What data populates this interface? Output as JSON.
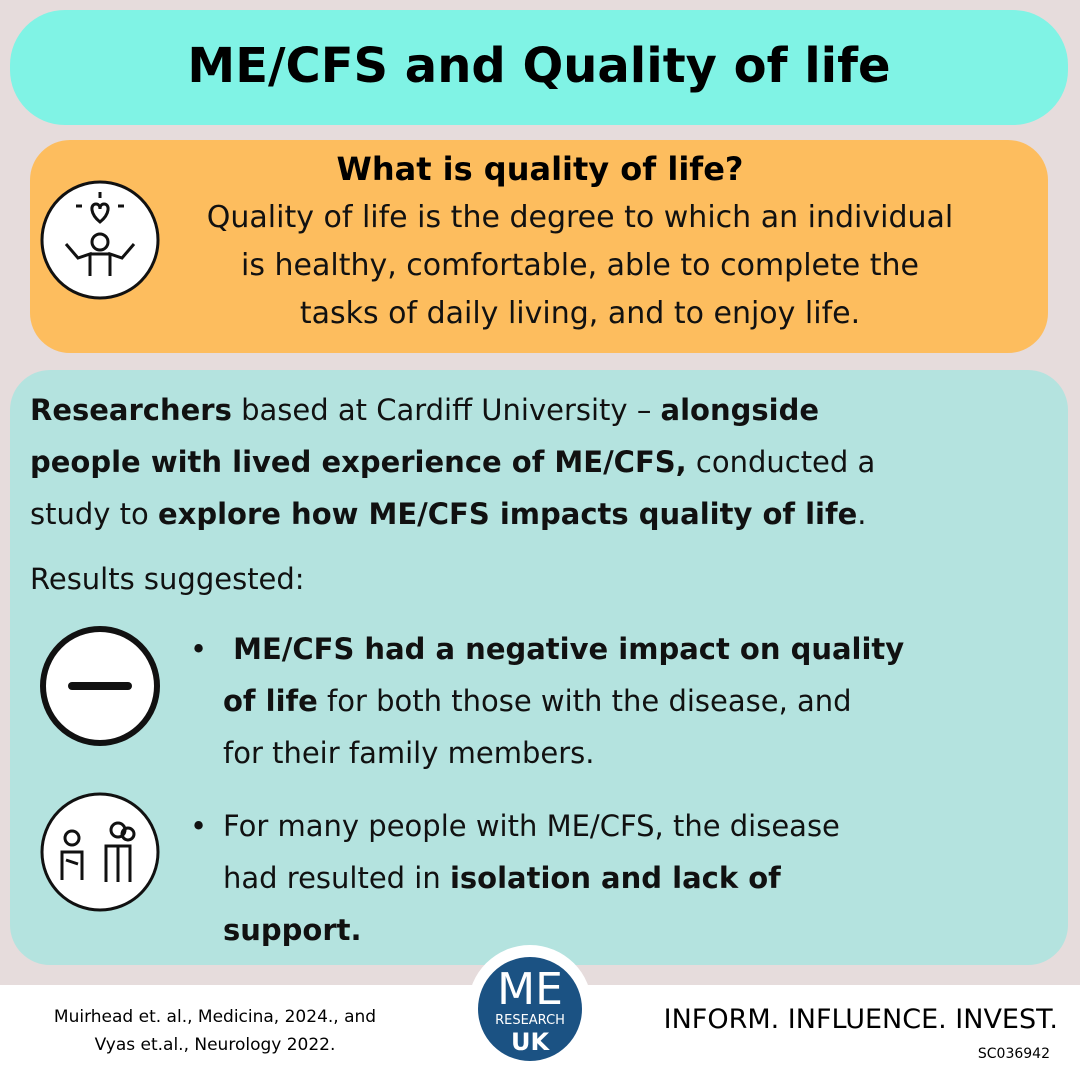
{
  "title": "ME/CFS and Quality of life",
  "definition": {
    "heading": "What is quality of life?",
    "lines": [
      "Quality of life is the degree to which an individual",
      "is healthy, comfortable, able to complete the",
      "tasks of daily living, and to enjoy life."
    ]
  },
  "study": {
    "lines": [
      [
        {
          "text": "Researchers",
          "bold": true
        },
        {
          "text": " based at Cardiff University – "
        },
        {
          "text": "alongside",
          "bold": true
        }
      ],
      [
        {
          "text": "people with lived experience of ME/CFS,",
          "bold": true
        },
        {
          "text": " conducted a"
        }
      ],
      [
        {
          "text": "study to "
        },
        {
          "text": "explore how ME/CFS impacts quality of life",
          "bold": true
        },
        {
          "text": "."
        }
      ]
    ],
    "results_label": "Results suggested:",
    "bullets": [
      {
        "lines": [
          [
            {
              "text": " ME/CFS had a negative impact on quality",
              "bold": true
            }
          ],
          [
            {
              "text": "of life",
              "bold": true
            },
            {
              "text": " for both those with the disease, and"
            }
          ],
          [
            {
              "text": "for their family members."
            }
          ]
        ]
      },
      {
        "lines": [
          [
            {
              "text": "For many people with ME/CFS, the disease"
            }
          ],
          [
            {
              "text": "had resulted in "
            },
            {
              "text": "isolation and lack of",
              "bold": true
            }
          ],
          [
            {
              "text": "support.",
              "bold": true
            }
          ]
        ]
      }
    ]
  },
  "footer": {
    "citation": [
      "Muirhead et. al., Medicina, 2024., and",
      "Vyas et.al., Neurology 2022."
    ],
    "logo": {
      "top": "ME",
      "middle": "RESEARCH",
      "bottom": "UK"
    },
    "tagline": "INFORM. INFLUENCE. INVEST.",
    "charity_number": "SC036942"
  }
}
